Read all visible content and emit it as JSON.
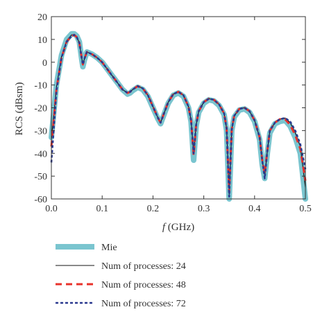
{
  "chart_data": {
    "type": "line",
    "xlabel_italic": "f",
    "xlabel_unit": "(GHz)",
    "ylabel": "RCS (dBsm)",
    "xlim": [
      0.0,
      0.5
    ],
    "ylim": [
      -60,
      20
    ],
    "x_ticks": [
      0.0,
      0.1,
      0.2,
      0.3,
      0.4,
      0.5
    ],
    "x_tick_labels": [
      "0.0",
      "0.1",
      "0.2",
      "0.3",
      "0.4",
      "0.5"
    ],
    "y_ticks": [
      -60,
      -50,
      -40,
      -30,
      -20,
      -10,
      0,
      10,
      20
    ],
    "y_tick_labels": [
      "-60",
      "-50",
      "-40",
      "-30",
      "-20",
      "-10",
      "0",
      "10",
      "20"
    ],
    "grid": false,
    "legend_position": "below-plot",
    "x": [
      0.0,
      0.01,
      0.02,
      0.03,
      0.04,
      0.045,
      0.05,
      0.055,
      0.06,
      0.062,
      0.065,
      0.07,
      0.08,
      0.09,
      0.1,
      0.11,
      0.12,
      0.13,
      0.14,
      0.15,
      0.155,
      0.16,
      0.17,
      0.18,
      0.19,
      0.2,
      0.21,
      0.215,
      0.22,
      0.23,
      0.24,
      0.25,
      0.26,
      0.27,
      0.275,
      0.28,
      0.285,
      0.29,
      0.3,
      0.31,
      0.32,
      0.33,
      0.34,
      0.345,
      0.35,
      0.355,
      0.36,
      0.37,
      0.38,
      0.39,
      0.4,
      0.41,
      0.415,
      0.42,
      0.425,
      0.43,
      0.44,
      0.45,
      0.46,
      0.47,
      0.48,
      0.49,
      0.5
    ],
    "series": [
      {
        "name": "Mie",
        "color": "#7ac5cf",
        "style": "thick-solid",
        "values": [
          -33,
          -10,
          3,
          10,
          12.5,
          12.5,
          11.5,
          9,
          1,
          -2,
          1,
          4.5,
          3.5,
          2,
          0,
          -3,
          -6,
          -9,
          -12,
          -14,
          -13.5,
          -12.5,
          -11,
          -12,
          -15,
          -20,
          -25,
          -27,
          -24,
          -18,
          -14.5,
          -13.5,
          -15,
          -20,
          -26,
          -43,
          -28,
          -22,
          -18,
          -16.5,
          -17,
          -19,
          -23,
          -30,
          -60,
          -30,
          -24,
          -21,
          -20.5,
          -22,
          -26,
          -34,
          -45,
          -51,
          -40,
          -31,
          -27,
          -26,
          -25.5,
          -28,
          -33,
          -40,
          -60
        ]
      },
      {
        "name": "Num of processes: 24",
        "color": "#111111",
        "style": "thin-solid",
        "values": [
          -34,
          -11,
          2.5,
          9.5,
          12,
          12,
          11,
          8.5,
          1.5,
          -1,
          1.5,
          4.5,
          3.5,
          2,
          0,
          -3,
          -6,
          -9,
          -12,
          -13.5,
          -13,
          -12,
          -10.5,
          -11.5,
          -14.5,
          -19.5,
          -24.5,
          -26.5,
          -23.5,
          -17.5,
          -14,
          -13,
          -14.5,
          -19.5,
          -25.5,
          -40,
          -27.5,
          -21.5,
          -17.5,
          -16,
          -16.5,
          -18.5,
          -22.5,
          -29,
          -58,
          -29.5,
          -23.5,
          -20.5,
          -20,
          -21.5,
          -25.5,
          -33,
          -43,
          -50,
          -39,
          -30,
          -26.5,
          -25,
          -24.5,
          -26.5,
          -31,
          -37,
          -55
        ]
      },
      {
        "name": "Num of processes: 48",
        "color": "#e8312a",
        "style": "dashed",
        "values": [
          -37,
          -12,
          2,
          9,
          11.5,
          12,
          11,
          8.5,
          1.5,
          -1,
          1.5,
          4.5,
          3.5,
          2,
          0,
          -3,
          -6,
          -9,
          -12,
          -13.5,
          -13,
          -12,
          -10.5,
          -11.5,
          -14.5,
          -19.5,
          -24.5,
          -26.5,
          -23.5,
          -17.5,
          -14,
          -13,
          -14.5,
          -19.5,
          -25.5,
          -41,
          -27.5,
          -21.5,
          -17.5,
          -16,
          -16.5,
          -18.5,
          -22.5,
          -29,
          -57,
          -29.5,
          -23.5,
          -20.5,
          -20,
          -21.5,
          -25.5,
          -33,
          -43,
          -49,
          -39,
          -30,
          -26.5,
          -25,
          -25,
          -27.5,
          -32,
          -38,
          -52
        ]
      },
      {
        "name": "Num of processes: 72",
        "color": "#2b3a8f",
        "style": "dotted",
        "values": [
          -44,
          -12.5,
          2,
          9,
          11.5,
          12,
          11,
          8.5,
          1.5,
          -1,
          1.5,
          4.5,
          3.5,
          2,
          0,
          -3,
          -6,
          -9,
          -12,
          -13.5,
          -13,
          -12,
          -10.5,
          -11.5,
          -14.5,
          -19.5,
          -24.5,
          -26.5,
          -23.5,
          -17.5,
          -14,
          -13,
          -14.5,
          -19.5,
          -25.5,
          -40,
          -27.5,
          -21.5,
          -17.5,
          -16,
          -16.5,
          -18.5,
          -22.5,
          -29,
          -59,
          -29.5,
          -23.5,
          -20.5,
          -20,
          -21.5,
          -25.5,
          -33,
          -43,
          -51,
          -39,
          -30,
          -26.5,
          -25,
          -24.5,
          -26,
          -30,
          -36,
          -47
        ]
      }
    ]
  }
}
